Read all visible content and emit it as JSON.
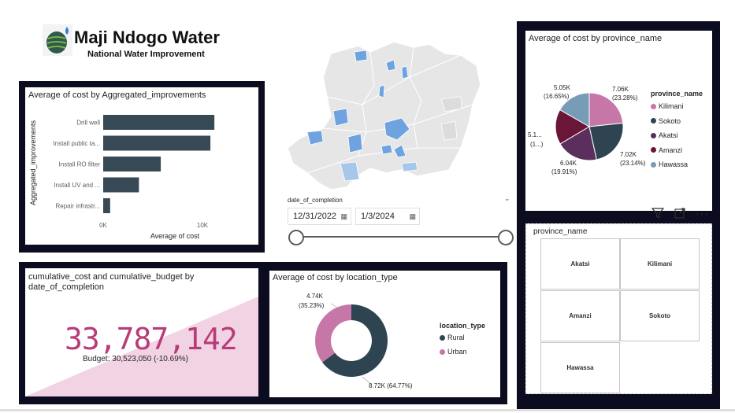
{
  "header": {
    "title": "Maji Ndogo Water",
    "subtitle": "National Water Improvement",
    "logo_icon": "water-drop-globe-icon"
  },
  "colors": {
    "panel_bg": "#0b0c1f",
    "bar": "#374955",
    "kpi": "#b83c7a",
    "kilimani": "#c677a8",
    "sokoto": "#2e4450",
    "akatsi": "#5a2f5e",
    "amanzi": "#6b1538",
    "hawassa": "#779cb8",
    "rural": "#2e4450",
    "urban": "#c677a8",
    "map_fill": "#e6e6e6",
    "map_highlight": "#6ea3e0"
  },
  "bar_chart": {
    "title": "Average of cost by Aggregated_improvements",
    "ylabel": "Aggregated_improvements",
    "xlabel": "Average of cost",
    "ticks": [
      "0K",
      "10K"
    ]
  },
  "kpi": {
    "title": "cumulative_cost and cumulative_budget by date_of_completion",
    "value": "33,787,142",
    "budget_text": "Budget: 30,523,050 (-10.69%)"
  },
  "donut": {
    "title": "Average of cost by location_type",
    "legend_title": "location_type",
    "label_urban_value": "4.74K",
    "label_urban_pct": "(35.23%)",
    "label_rural": "8.72K (64.77%)"
  },
  "date_slicer": {
    "label": "date_of_completion",
    "start": "12/31/2022",
    "end": "1/3/2024",
    "start_fraction": 0,
    "end_fraction": 1
  },
  "pie": {
    "title": "Average of cost by province_name",
    "legend_title": "province_name",
    "labels": {
      "kilimani_value": "7.06K",
      "kilimani_pct": "(23.28%)",
      "sokoto_value": "7.02K",
      "sokoto_pct": "(23.14%)",
      "akatsi_value": "6.04K",
      "akatsi_pct": "(19.91%)",
      "amanzi_value": "5.1...",
      "amanzi_pct": "(1...)",
      "hawassa_value": "5.05K",
      "hawassa_pct": "(16.65%)"
    }
  },
  "province_slicer": {
    "title": "province_name",
    "items": [
      "Akatsi",
      "Kilimani",
      "Amanzi",
      "Sokoto",
      "Hawassa"
    ]
  },
  "visual_header_icons": [
    "filter-icon",
    "focus-mode-icon",
    "more-options-icon"
  ],
  "chart_data": [
    {
      "type": "bar",
      "orientation": "horizontal",
      "title": "Average of cost by Aggregated_improvements",
      "categories": [
        "Drill well",
        "Install public ta...",
        "Install RO filter",
        "Install UV and ...",
        "Repair infrastr..."
      ],
      "values": [
        11200,
        10800,
        5800,
        3600,
        700
      ],
      "xlabel": "Average of cost",
      "ylabel": "Aggregated_improvements",
      "xlim": [
        0,
        12000
      ],
      "xticks": [
        "0K",
        "10K"
      ]
    },
    {
      "type": "pie",
      "title": "Average of cost by province_name",
      "categories": [
        "Kilimani",
        "Sokoto",
        "Akatsi",
        "Amanzi",
        "Hawassa"
      ],
      "values": [
        7060,
        7020,
        6040,
        5100,
        5050
      ],
      "percents": [
        23.28,
        23.14,
        19.91,
        17.02,
        16.65
      ],
      "legend_title": "province_name",
      "legend_position": "right"
    },
    {
      "type": "pie",
      "subtype": "donut",
      "title": "Average of cost by location_type",
      "categories": [
        "Rural",
        "Urban"
      ],
      "values": [
        8720,
        4740
      ],
      "percents": [
        64.77,
        35.23
      ],
      "legend_title": "location_type",
      "legend_position": "right"
    }
  ]
}
